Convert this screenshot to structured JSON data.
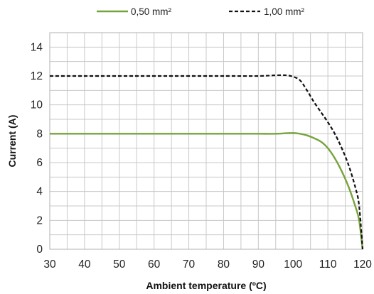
{
  "chart_data": {
    "type": "line",
    "title": "",
    "xlabel": "Ambient temperature (ºC)",
    "ylabel": "Current (A)",
    "xlim": [
      30,
      120
    ],
    "ylim": [
      0,
      15
    ],
    "x_ticks": [
      30,
      40,
      50,
      60,
      70,
      80,
      90,
      100,
      110,
      120
    ],
    "y_ticks": [
      0,
      2,
      4,
      6,
      8,
      10,
      12,
      14
    ],
    "grid": true,
    "legend_position": "top",
    "series": [
      {
        "name": "0,50 mm²",
        "color": "#77a33c",
        "style": "solid",
        "x": [
          30,
          40,
          50,
          60,
          70,
          80,
          90,
          95,
          100,
          103,
          105,
          108,
          110,
          112,
          114,
          116,
          118,
          119,
          120
        ],
        "y": [
          8.0,
          8.0,
          8.0,
          8.0,
          8.0,
          8.0,
          8.0,
          8.0,
          8.05,
          7.95,
          7.8,
          7.45,
          7.0,
          6.3,
          5.4,
          4.3,
          2.9,
          2.0,
          0
        ]
      },
      {
        "name": "1,00 mm²",
        "color": "#111111",
        "style": "dashed",
        "x": [
          30,
          40,
          50,
          60,
          70,
          80,
          90,
          95,
          98,
          100,
          102,
          104,
          106,
          108,
          110,
          112,
          114,
          116,
          118,
          119,
          120
        ],
        "y": [
          12.0,
          12.0,
          12.0,
          12.0,
          12.0,
          12.0,
          12.0,
          12.05,
          12.05,
          11.95,
          11.7,
          11.0,
          10.2,
          9.5,
          8.8,
          8.0,
          7.0,
          5.8,
          4.2,
          3.0,
          0
        ]
      }
    ]
  }
}
